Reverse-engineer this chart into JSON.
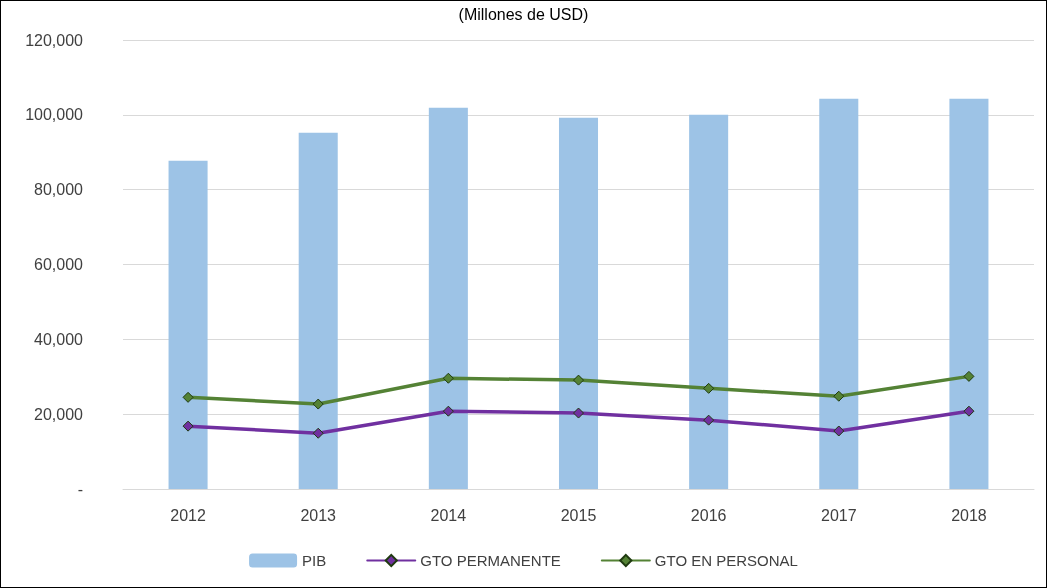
{
  "chart_data": {
    "type": "bar",
    "title": "(Millones de USD)",
    "categories": [
      "2012",
      "2013",
      "2014",
      "2015",
      "2016",
      "2017",
      "2018"
    ],
    "series": [
      {
        "name": "PIB",
        "color": "#9dc3e6",
        "values": [
          87700,
          95200,
          101900,
          99200,
          100000,
          104300,
          104300
        ]
      },
      {
        "name": "GTO PERMANENTE",
        "type": "line",
        "color": "#7030a0",
        "values": [
          16800,
          14900,
          20800,
          20300,
          18400,
          15500,
          20800
        ]
      },
      {
        "name": "GTO EN PERSONAL",
        "type": "line",
        "color": "#548235",
        "values": [
          24500,
          22700,
          29600,
          29100,
          26900,
          24800,
          30100
        ]
      }
    ],
    "ylim": [
      0,
      120000
    ],
    "yticks": [
      {
        "value": 0,
        "label": "-"
      },
      {
        "value": 20000,
        "label": "20,000"
      },
      {
        "value": 40000,
        "label": "40,000"
      },
      {
        "value": 60000,
        "label": "60,000"
      },
      {
        "value": 80000,
        "label": "80,000"
      },
      {
        "value": 100000,
        "label": "100,000"
      },
      {
        "value": 120000,
        "label": "120,000"
      }
    ],
    "grid": "y",
    "legend": "bottom",
    "marker": "diamond",
    "line_style": "solid"
  }
}
